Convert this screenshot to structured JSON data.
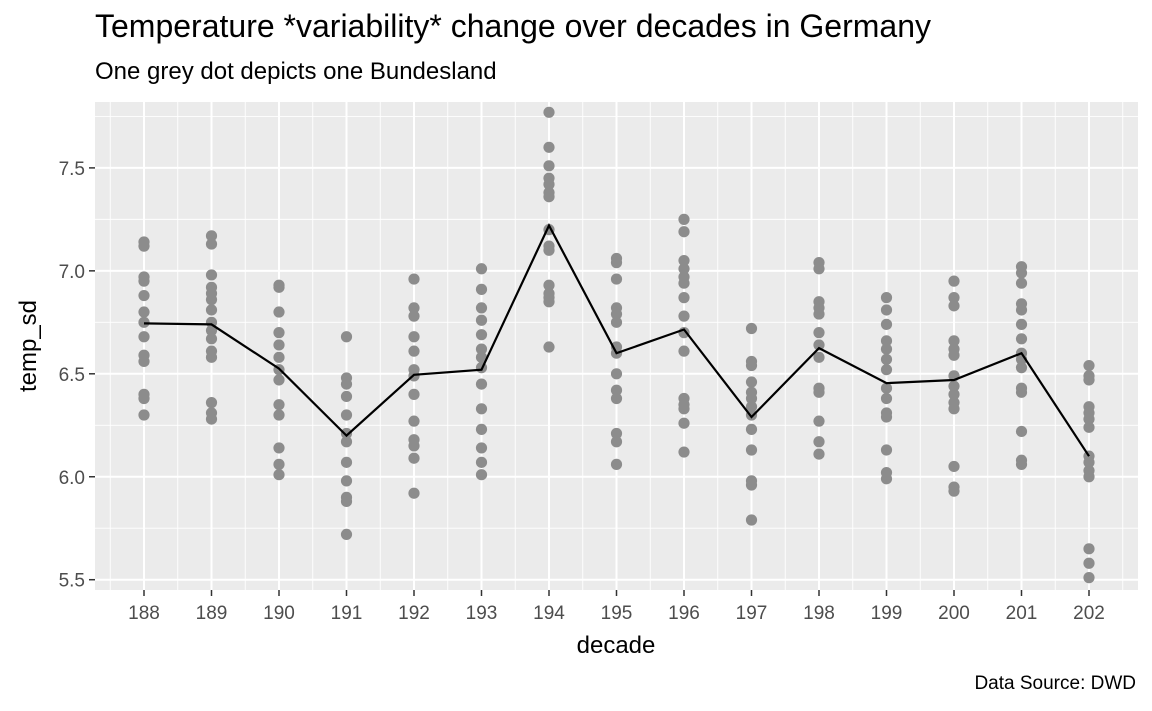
{
  "chart_data": {
    "type": "scatter",
    "title": "Temperature *variability* change over decades in Germany",
    "subtitle": "One grey dot depicts one Bundesland",
    "caption": "Data Source: DWD",
    "xlabel": "decade",
    "ylabel": "temp_sd",
    "categories": [
      "188",
      "189",
      "190",
      "191",
      "192",
      "193",
      "194",
      "195",
      "196",
      "197",
      "198",
      "199",
      "200",
      "201",
      "202"
    ],
    "ylim": [
      5.45,
      7.82
    ],
    "yticks": [
      5.5,
      6.0,
      6.5,
      7.0,
      7.5
    ],
    "ytick_labels": [
      "5.5",
      "6.0",
      "6.5",
      "7.0",
      "7.5"
    ],
    "grid": true,
    "colors": {
      "panel": "#EBEBEB",
      "grid": "#FFFFFF",
      "points": "#8C8C8C",
      "line": "#000000"
    },
    "series": [
      {
        "type": "points",
        "values": [
          [
            7.14,
            7.12,
            6.97,
            6.95,
            6.88,
            6.8,
            6.75,
            6.68,
            6.59,
            6.56,
            6.4,
            6.38,
            6.3
          ],
          [
            7.17,
            7.13,
            6.98,
            6.92,
            6.89,
            6.86,
            6.81,
            6.75,
            6.71,
            6.67,
            6.61,
            6.58,
            6.36,
            6.31,
            6.28
          ],
          [
            6.93,
            6.92,
            6.8,
            6.7,
            6.64,
            6.58,
            6.52,
            6.47,
            6.35,
            6.3,
            6.14,
            6.06,
            6.01
          ],
          [
            6.68,
            6.48,
            6.45,
            6.39,
            6.3,
            6.21,
            6.17,
            6.07,
            5.98,
            5.9,
            5.88,
            5.72
          ],
          [
            6.96,
            6.82,
            6.78,
            6.68,
            6.61,
            6.52,
            6.49,
            6.4,
            6.27,
            6.18,
            6.15,
            6.09,
            5.92
          ],
          [
            7.01,
            6.91,
            6.82,
            6.76,
            6.69,
            6.62,
            6.58,
            6.53,
            6.45,
            6.33,
            6.23,
            6.14,
            6.07,
            6.01
          ],
          [
            7.77,
            7.6,
            7.51,
            7.45,
            7.42,
            7.38,
            7.36,
            7.2,
            7.12,
            7.1,
            6.93,
            6.89,
            6.87,
            6.85,
            6.63
          ],
          [
            7.06,
            7.04,
            6.96,
            6.82,
            6.79,
            6.75,
            6.63,
            6.6,
            6.5,
            6.42,
            6.38,
            6.21,
            6.17,
            6.06
          ],
          [
            7.25,
            7.19,
            7.05,
            7.01,
            6.97,
            6.94,
            6.87,
            6.78,
            6.7,
            6.61,
            6.38,
            6.35,
            6.33,
            6.26,
            6.12
          ],
          [
            6.72,
            6.56,
            6.54,
            6.46,
            6.41,
            6.38,
            6.34,
            6.3,
            6.23,
            6.13,
            5.98,
            5.96,
            5.79
          ],
          [
            7.04,
            7.01,
            6.85,
            6.82,
            6.79,
            6.7,
            6.64,
            6.58,
            6.43,
            6.41,
            6.27,
            6.17,
            6.11
          ],
          [
            6.87,
            6.81,
            6.74,
            6.66,
            6.62,
            6.57,
            6.52,
            6.43,
            6.38,
            6.31,
            6.29,
            6.13,
            6.02,
            5.99
          ],
          [
            6.95,
            6.87,
            6.83,
            6.66,
            6.62,
            6.59,
            6.49,
            6.44,
            6.4,
            6.36,
            6.33,
            6.05,
            5.95,
            5.93
          ],
          [
            7.02,
            6.99,
            6.94,
            6.84,
            6.81,
            6.74,
            6.67,
            6.6,
            6.57,
            6.53,
            6.43,
            6.41,
            6.22,
            6.08,
            6.06
          ],
          [
            6.54,
            6.49,
            6.47,
            6.34,
            6.31,
            6.28,
            6.24,
            6.1,
            6.07,
            6.03,
            6.0,
            5.65,
            5.58,
            5.51
          ]
        ]
      },
      {
        "type": "line",
        "values": [
          6.745,
          6.74,
          6.525,
          6.2,
          6.495,
          6.52,
          7.22,
          6.6,
          6.715,
          6.29,
          6.625,
          6.455,
          6.47,
          6.6,
          6.1
        ]
      }
    ]
  }
}
